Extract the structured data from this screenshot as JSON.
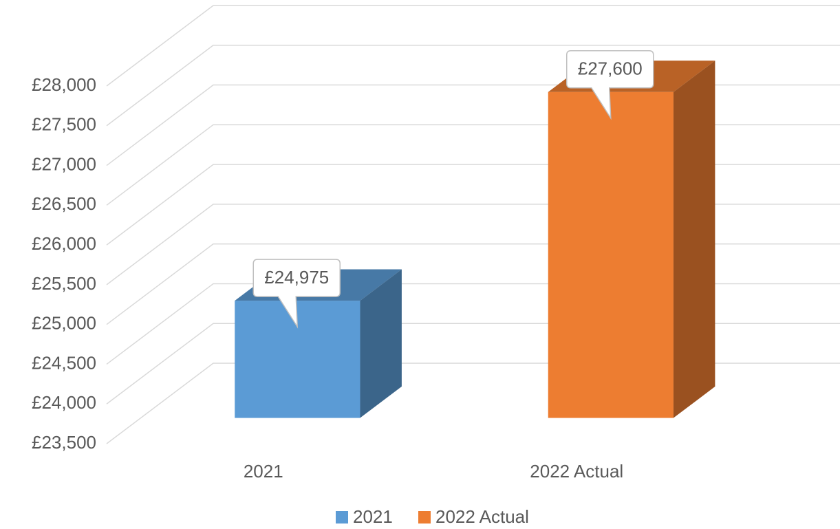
{
  "chart_data": {
    "type": "bar3d",
    "categories": [
      "2021",
      "2022 Actual"
    ],
    "series": [
      {
        "name": "2021",
        "color": "#5b9bd5",
        "values": [
          24975,
          null
        ],
        "value_labels": [
          "£24,975",
          null
        ]
      },
      {
        "name": "2022 Actual",
        "color": "#ed7d31",
        "values": [
          null,
          27600
        ],
        "value_labels": [
          null,
          "£27,600"
        ]
      }
    ],
    "ylim": [
      23500,
      28000
    ],
    "yticks": [
      {
        "value": 23500,
        "label": "£23,500"
      },
      {
        "value": 24000,
        "label": "£24,000"
      },
      {
        "value": 24500,
        "label": "£24,500"
      },
      {
        "value": 25000,
        "label": "£25,000"
      },
      {
        "value": 25500,
        "label": "£25,500"
      },
      {
        "value": 26000,
        "label": "£26,000"
      },
      {
        "value": 26500,
        "label": "£26,500"
      },
      {
        "value": 27000,
        "label": "£27,000"
      },
      {
        "value": 27500,
        "label": "£27,500"
      },
      {
        "value": 28000,
        "label": "£28,000"
      }
    ],
    "grid": true,
    "legend": "bottom"
  }
}
